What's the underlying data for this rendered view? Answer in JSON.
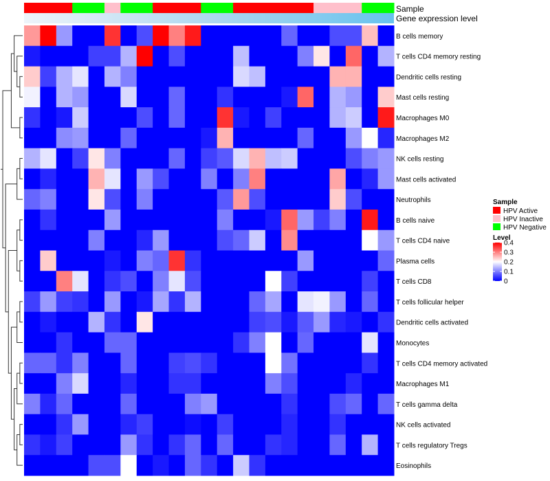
{
  "chart_data": {
    "type": "heatmap",
    "title": "",
    "annotation_tracks": [
      "Sample",
      "Gene expression level"
    ],
    "columns": 23,
    "rows": [
      "B cells memory",
      "T cells CD4 memory resting",
      "Dendritic cells resting",
      "Mast cells resting",
      "Macrophages M0",
      "Macrophages M2",
      "NK cells resting",
      "Mast cells activated",
      "Neutrophils",
      "B cells naive",
      "T cells CD4 naive",
      "Plasma cells",
      "T cells CD8",
      "T cells follicular helper",
      "Dendritic cells activated",
      "Monocytes",
      "T cells CD4 memory activated",
      "Macrophages M1",
      "T cells gamma delta",
      "NK cells activated",
      "T cells regulatory  Tregs",
      "Eosinophils"
    ],
    "sample_groups": [
      "HPV Active",
      "HPV Active",
      "HPV Active",
      "HPV Negative",
      "HPV Negative",
      "HPV Inactive",
      "HPV Negative",
      "HPV Negative",
      "HPV Active",
      "HPV Active",
      "HPV Active",
      "HPV Negative",
      "HPV Negative",
      "HPV Active",
      "HPV Active",
      "HPV Active",
      "HPV Active",
      "HPV Active",
      "HPV Inactive",
      "HPV Inactive",
      "HPV Inactive",
      "HPV Negative",
      "HPV Negative"
    ],
    "values": [
      [
        0.28,
        0.4,
        0.12,
        0.0,
        0.0,
        0.36,
        0.0,
        0.06,
        0.4,
        0.3,
        0.38,
        0.0,
        0.0,
        0.0,
        0.0,
        0.0,
        0.08,
        0.0,
        0.0,
        0.06,
        0.06,
        0.25,
        0.0
      ],
      [
        0.02,
        0.0,
        0.0,
        0.0,
        0.05,
        0.05,
        0.14,
        0.4,
        0.0,
        0.06,
        0.0,
        0.0,
        0.0,
        0.15,
        0.0,
        0.0,
        0.0,
        0.1,
        0.22,
        0.0,
        0.32,
        0.0,
        0.14
      ],
      [
        0.24,
        0.05,
        0.14,
        0.18,
        0.0,
        0.14,
        0.1,
        0.0,
        0.0,
        0.0,
        0.0,
        0.0,
        0.0,
        0.17,
        0.15,
        0.0,
        0.0,
        0.0,
        0.0,
        0.26,
        0.26,
        0.0,
        0.0
      ],
      [
        0.19,
        0.0,
        0.14,
        0.12,
        0.0,
        0.0,
        0.17,
        0.0,
        0.0,
        0.08,
        0.0,
        0.0,
        0.04,
        0.0,
        0.0,
        0.0,
        0.02,
        0.32,
        0.0,
        0.14,
        0.12,
        0.0,
        0.24
      ],
      [
        0.04,
        0.0,
        0.02,
        0.16,
        0.0,
        0.0,
        0.0,
        0.06,
        0.0,
        0.08,
        0.0,
        0.0,
        0.36,
        0.02,
        0.0,
        0.05,
        0.0,
        0.0,
        0.0,
        0.14,
        0.16,
        0.0,
        0.38
      ],
      [
        0.0,
        0.0,
        0.11,
        0.12,
        0.0,
        0.0,
        0.08,
        0.0,
        0.0,
        0.0,
        0.0,
        0.02,
        0.26,
        0.0,
        0.0,
        0.0,
        0.0,
        0.08,
        0.0,
        0.0,
        0.12,
        0.2,
        0.03
      ],
      [
        0.14,
        0.18,
        0.0,
        0.05,
        0.22,
        0.1,
        0.0,
        0.0,
        0.0,
        0.08,
        0.0,
        0.05,
        0.07,
        0.17,
        0.26,
        0.15,
        0.16,
        0.0,
        0.0,
        0.0,
        0.06,
        0.1,
        0.12
      ],
      [
        0.0,
        0.03,
        0.0,
        0.0,
        0.26,
        0.18,
        0.0,
        0.12,
        0.06,
        0.0,
        0.0,
        0.1,
        0.0,
        0.1,
        0.3,
        0.0,
        0.0,
        0.0,
        0.0,
        0.27,
        0.0,
        0.03,
        0.12
      ],
      [
        0.08,
        0.1,
        0.0,
        0.0,
        0.22,
        0.06,
        0.0,
        0.1,
        0.0,
        0.0,
        0.0,
        0.0,
        0.07,
        0.28,
        0.06,
        0.0,
        0.0,
        0.0,
        0.0,
        0.24,
        0.06,
        0.0,
        0.0
      ],
      [
        0.0,
        0.04,
        0.0,
        0.0,
        0.0,
        0.12,
        0.0,
        0.0,
        0.0,
        0.0,
        0.0,
        0.0,
        0.1,
        0.0,
        0.0,
        0.02,
        0.32,
        0.12,
        0.05,
        0.1,
        0.0,
        0.38,
        0.0
      ],
      [
        0.0,
        0.0,
        0.0,
        0.0,
        0.1,
        0.0,
        0.0,
        0.03,
        0.12,
        0.0,
        0.0,
        0.0,
        0.06,
        0.08,
        0.16,
        0.0,
        0.29,
        0.0,
        0.0,
        0.0,
        0.0,
        0.2,
        0.12
      ],
      [
        0.0,
        0.24,
        0.0,
        0.0,
        0.0,
        0.02,
        0.0,
        0.1,
        0.08,
        0.36,
        0.04,
        0.0,
        0.0,
        0.0,
        0.0,
        0.0,
        0.0,
        0.12,
        0.0,
        0.0,
        0.0,
        0.0,
        0.08
      ],
      [
        0.0,
        0.0,
        0.3,
        0.18,
        0.0,
        0.04,
        0.06,
        0.0,
        0.1,
        0.18,
        0.06,
        0.0,
        0.0,
        0.0,
        0.0,
        0.2,
        0.05,
        0.0,
        0.0,
        0.0,
        0.0,
        0.05,
        0.0
      ],
      [
        0.05,
        0.12,
        0.05,
        0.04,
        0.0,
        0.12,
        0.0,
        0.02,
        0.13,
        0.04,
        0.14,
        0.0,
        0.0,
        0.0,
        0.08,
        0.13,
        0.0,
        0.18,
        0.19,
        0.12,
        0.0,
        0.08,
        0.0
      ],
      [
        0.0,
        0.02,
        0.0,
        0.0,
        0.14,
        0.04,
        0.0,
        0.22,
        0.0,
        0.0,
        0.0,
        0.0,
        0.0,
        0.0,
        0.05,
        0.06,
        0.02,
        0.07,
        0.12,
        0.03,
        0.02,
        0.0,
        0.04
      ],
      [
        0.0,
        0.0,
        0.04,
        0.0,
        0.0,
        0.08,
        0.08,
        0.0,
        0.0,
        0.0,
        0.0,
        0.0,
        0.0,
        0.04,
        0.1,
        0.2,
        0.0,
        0.08,
        0.0,
        0.0,
        0.0,
        0.18,
        0.0
      ],
      [
        0.08,
        0.08,
        0.04,
        0.1,
        0.0,
        0.0,
        0.08,
        0.0,
        0.0,
        0.05,
        0.06,
        0.04,
        0.0,
        0.0,
        0.0,
        0.2,
        0.09,
        0.0,
        0.0,
        0.0,
        0.0,
        0.04,
        0.0
      ],
      [
        0.0,
        0.0,
        0.1,
        0.17,
        0.0,
        0.0,
        0.03,
        0.0,
        0.0,
        0.04,
        0.04,
        0.0,
        0.0,
        0.0,
        0.0,
        0.1,
        0.06,
        0.0,
        0.0,
        0.0,
        0.03,
        0.0,
        0.0
      ],
      [
        0.1,
        0.03,
        0.08,
        0.0,
        0.0,
        0.0,
        0.08,
        0.0,
        0.0,
        0.0,
        0.1,
        0.12,
        0.0,
        0.0,
        0.0,
        0.0,
        0.04,
        0.0,
        0.0,
        0.06,
        0.08,
        0.0,
        0.08
      ],
      [
        0.0,
        0.0,
        0.04,
        0.12,
        0.0,
        0.0,
        0.03,
        0.05,
        0.0,
        0.0,
        0.01,
        0.0,
        0.05,
        0.0,
        0.0,
        0.0,
        0.03,
        0.0,
        0.0,
        0.04,
        0.0,
        0.0,
        0.0
      ],
      [
        0.04,
        0.02,
        0.05,
        0.0,
        0.0,
        0.0,
        0.12,
        0.04,
        0.0,
        0.04,
        0.08,
        0.0,
        0.08,
        0.0,
        0.0,
        0.04,
        0.03,
        0.0,
        0.0,
        0.08,
        0.0,
        0.14,
        0.0
      ],
      [
        0.0,
        0.0,
        0.0,
        0.0,
        0.06,
        0.06,
        0.2,
        0.0,
        0.02,
        0.0,
        0.08,
        0.04,
        0.0,
        0.16,
        0.04,
        0.0,
        0.0,
        0.0,
        0.0,
        0.0,
        0.0,
        0.0,
        0.0
      ]
    ],
    "gene_expression_gradient": [
      "#eef4fa",
      "#aed8f0",
      "#67c2ee"
    ],
    "legend": {
      "sample_title": "Sample",
      "sample_entries": [
        {
          "label": "HPV Active",
          "color": "#ff0000"
        },
        {
          "label": "HPV Inactive",
          "color": "#ffc0cb"
        },
        {
          "label": "HPV Negative",
          "color": "#00ff00"
        }
      ],
      "level_title": "Level",
      "level_ticks": [
        "0.4",
        "0.3",
        "0.2",
        "0.1",
        "0"
      ],
      "level_tick_values": [
        0.4,
        0.3,
        0.2,
        0.1,
        0
      ],
      "level_range": [
        0,
        0.4
      ],
      "level_colors": [
        "#0000ff",
        "#ffffff",
        "#ff0000"
      ],
      "position": "right"
    },
    "grid": false
  }
}
